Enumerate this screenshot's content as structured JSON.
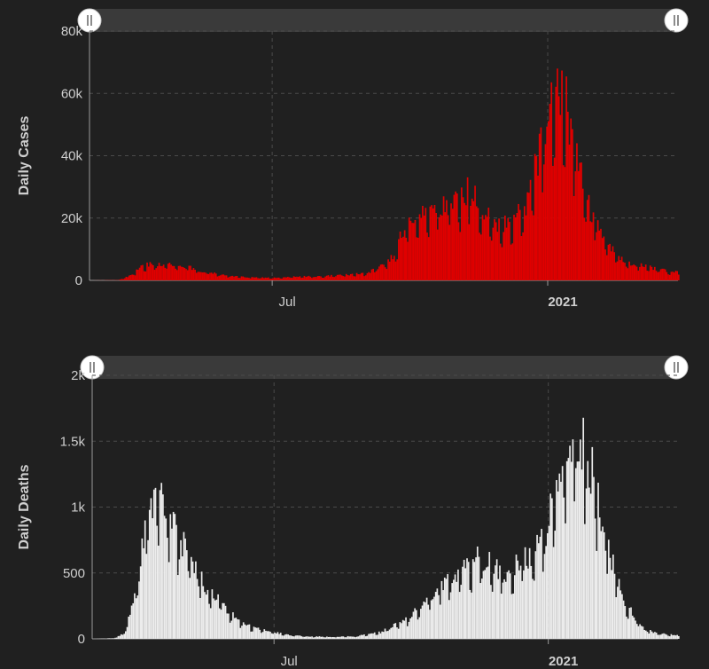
{
  "chart_data": [
    {
      "type": "bar",
      "ylabel": "Daily Cases",
      "color": "#e00000",
      "ylim": [
        0,
        80000
      ],
      "yticks": [
        "0",
        "20k",
        "40k",
        "60k",
        "80k"
      ],
      "ytick_values": [
        0,
        20000,
        40000,
        60000,
        80000
      ],
      "xticks": [
        {
          "label": "Jul",
          "bold": false
        },
        {
          "label": "2021",
          "bold": true
        }
      ],
      "x_range": [
        "2020-03-01",
        "2021-03-29"
      ],
      "xtick_dates": [
        "2020-07-01",
        "2021-01-01"
      ],
      "series_keypoints": [
        [
          "2020-03-01",
          0
        ],
        [
          "2020-03-20",
          100
        ],
        [
          "2020-03-28",
          1500
        ],
        [
          "2020-04-05",
          4500
        ],
        [
          "2020-04-12",
          5500
        ],
        [
          "2020-04-25",
          5000
        ],
        [
          "2020-05-05",
          4500
        ],
        [
          "2020-05-15",
          2800
        ],
        [
          "2020-06-01",
          1500
        ],
        [
          "2020-06-20",
          900
        ],
        [
          "2020-07-01",
          800
        ],
        [
          "2020-07-15",
          1200
        ],
        [
          "2020-08-01",
          1300
        ],
        [
          "2020-08-20",
          1800
        ],
        [
          "2020-09-01",
          2300
        ],
        [
          "2020-09-10",
          4000
        ],
        [
          "2020-09-20",
          8000
        ],
        [
          "2020-09-25",
          15000
        ],
        [
          "2020-10-05",
          20000
        ],
        [
          "2020-10-15",
          23000
        ],
        [
          "2020-10-25",
          25000
        ],
        [
          "2020-11-05",
          26000
        ],
        [
          "2020-11-10",
          30000
        ],
        [
          "2020-11-18",
          22000
        ],
        [
          "2020-11-28",
          17000
        ],
        [
          "2020-12-10",
          20000
        ],
        [
          "2020-12-18",
          26000
        ],
        [
          "2020-12-25",
          38000
        ],
        [
          "2021-01-02",
          55000
        ],
        [
          "2021-01-08",
          65000
        ],
        [
          "2021-01-12",
          60000
        ],
        [
          "2021-01-20",
          40000
        ],
        [
          "2021-01-27",
          25000
        ],
        [
          "2021-02-05",
          15000
        ],
        [
          "2021-02-12",
          10000
        ],
        [
          "2021-02-20",
          6000
        ],
        [
          "2021-03-05",
          5000
        ],
        [
          "2021-03-15",
          3500
        ],
        [
          "2021-03-29",
          2500
        ]
      ]
    },
    {
      "type": "bar",
      "ylabel": "Daily Deaths",
      "color": "#ececec",
      "ylim": [
        0,
        2000
      ],
      "yticks": [
        "0",
        "500",
        "1k",
        "1.5k",
        "2k"
      ],
      "ytick_values": [
        0,
        500,
        1000,
        1500,
        2000
      ],
      "xticks": [
        {
          "label": "Jul",
          "bold": false
        },
        {
          "label": "2021",
          "bold": true
        }
      ],
      "x_range": [
        "2020-03-01",
        "2021-03-29"
      ],
      "xtick_dates": [
        "2020-07-01",
        "2021-01-01"
      ],
      "series_keypoints": [
        [
          "2020-03-01",
          0
        ],
        [
          "2020-03-15",
          5
        ],
        [
          "2020-03-22",
          40
        ],
        [
          "2020-03-28",
          250
        ],
        [
          "2020-04-03",
          650
        ],
        [
          "2020-04-09",
          1050
        ],
        [
          "2020-04-15",
          1100
        ],
        [
          "2020-04-20",
          950
        ],
        [
          "2020-04-28",
          780
        ],
        [
          "2020-05-05",
          580
        ],
        [
          "2020-05-15",
          420
        ],
        [
          "2020-05-25",
          280
        ],
        [
          "2020-06-05",
          150
        ],
        [
          "2020-06-15",
          90
        ],
        [
          "2020-06-25",
          60
        ],
        [
          "2020-07-10",
          30
        ],
        [
          "2020-07-25",
          18
        ],
        [
          "2020-08-10",
          15
        ],
        [
          "2020-08-25",
          20
        ],
        [
          "2020-09-10",
          50
        ],
        [
          "2020-09-25",
          130
        ],
        [
          "2020-10-05",
          220
        ],
        [
          "2020-10-15",
          350
        ],
        [
          "2020-10-25",
          460
        ],
        [
          "2020-11-05",
          560
        ],
        [
          "2020-11-12",
          600
        ],
        [
          "2020-11-20",
          590
        ],
        [
          "2020-11-28",
          510
        ],
        [
          "2020-12-05",
          520
        ],
        [
          "2020-12-12",
          600
        ],
        [
          "2020-12-20",
          650
        ],
        [
          "2020-12-28",
          750
        ],
        [
          "2021-01-05",
          1100
        ],
        [
          "2021-01-12",
          1400
        ],
        [
          "2021-01-18",
          1550
        ],
        [
          "2021-01-24",
          1480
        ],
        [
          "2021-01-30",
          1250
        ],
        [
          "2021-02-06",
          900
        ],
        [
          "2021-02-13",
          580
        ],
        [
          "2021-02-20",
          320
        ],
        [
          "2021-02-27",
          160
        ],
        [
          "2021-03-06",
          80
        ],
        [
          "2021-03-15",
          40
        ],
        [
          "2021-03-29",
          25
        ]
      ]
    }
  ]
}
